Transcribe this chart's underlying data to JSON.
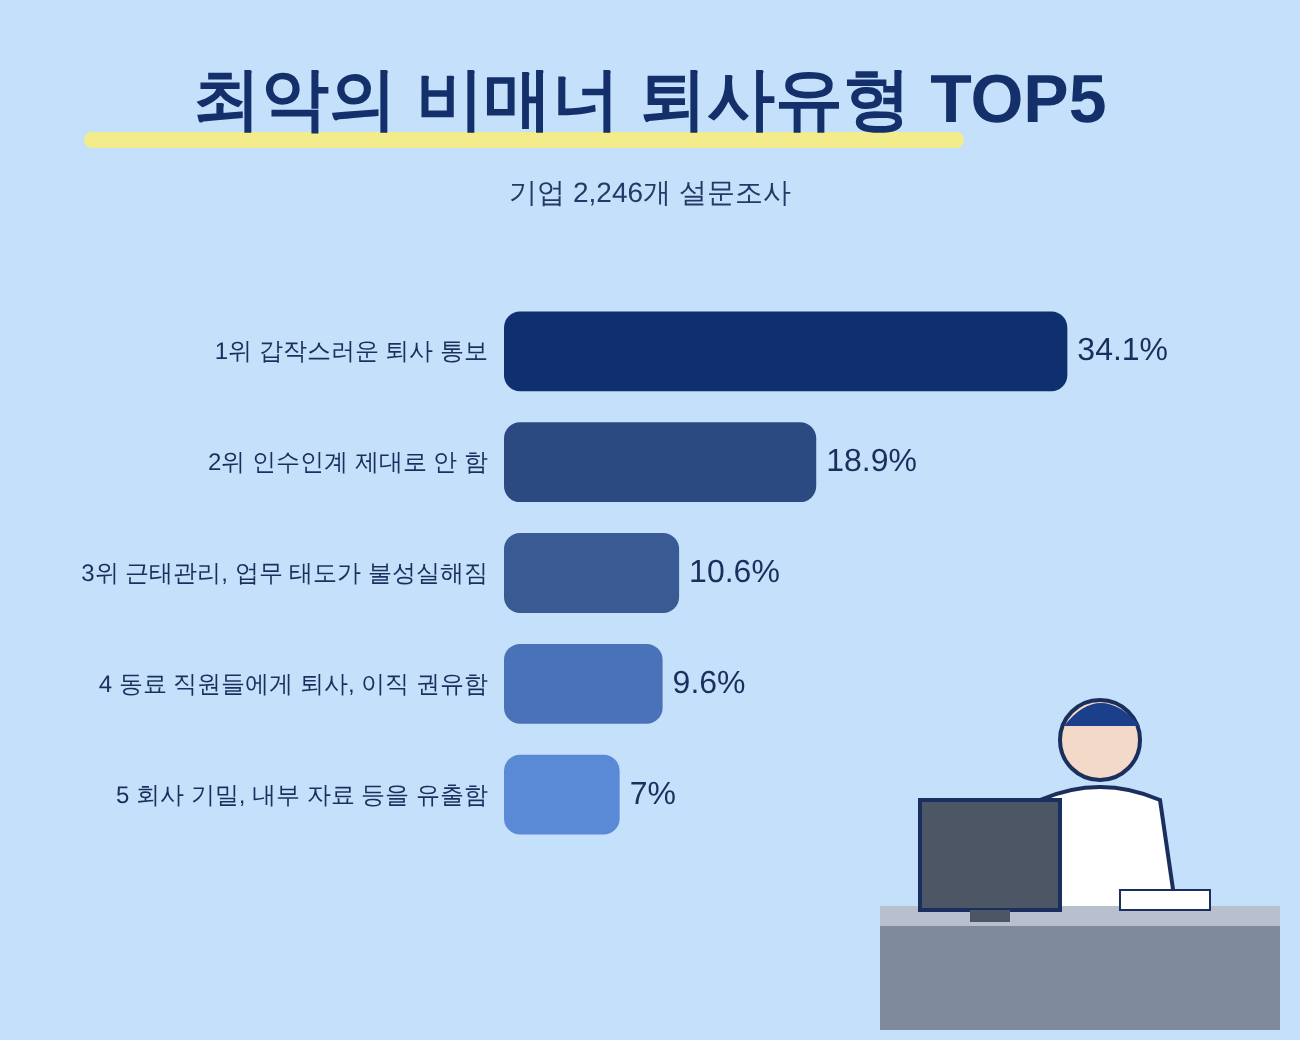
{
  "chart_data": {
    "type": "bar",
    "orientation": "horizontal",
    "title": "최악의 비매너 퇴사유형 TOP5",
    "subtitle": "기업 2,246개 설문조사",
    "categories": [
      "1위 갑작스러운 퇴사 통보",
      "2위 인수인계 제대로 안 함",
      "3위 근태관리, 업무 태도가 불성실해짐",
      "4 동료 직원들에게 퇴사, 이직 권유함",
      "5 회사 기밀, 내부 자료 등을 유출함"
    ],
    "values": [
      34.1,
      18.9,
      10.6,
      9.6,
      7
    ],
    "colors": [
      "#0f2f6f",
      "#2c4a82",
      "#3a5a94",
      "#4a72b8",
      "#5a8ad6"
    ],
    "value_labels": [
      "34.1%",
      "18.9%",
      "10.6%",
      "9.6%",
      "7%"
    ]
  }
}
